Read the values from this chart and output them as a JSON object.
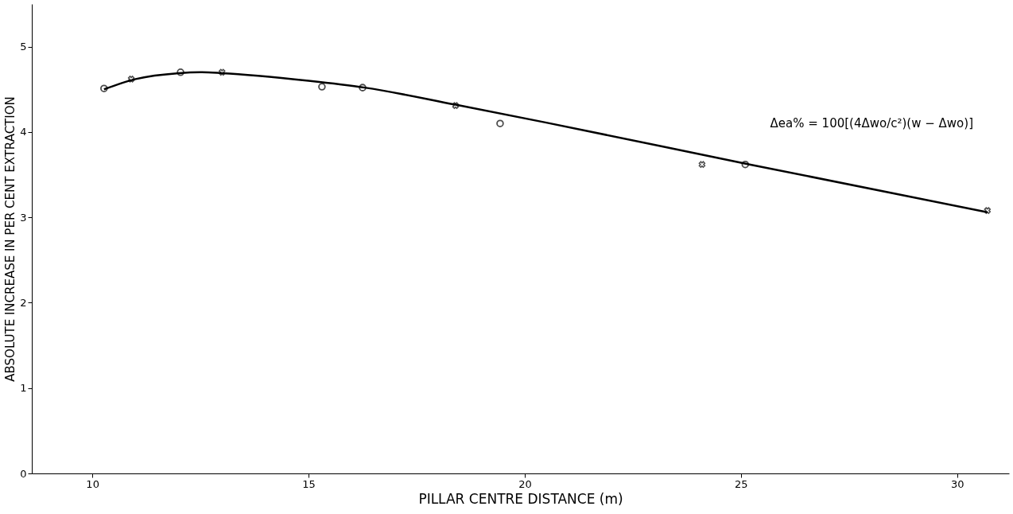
{
  "chart_data": {
    "type": "scatter",
    "xlabel": "PILLAR CENTRE DISTANCE (m)",
    "ylabel": "ABSOLUTE INCREASE IN PER CENT EXTRACTION",
    "xlim": [
      8.6,
      31.2
    ],
    "xticks": [
      10,
      15,
      20,
      25,
      30
    ],
    "ylim": [
      0,
      5.5
    ],
    "yticks": [
      0,
      1,
      2,
      3,
      4,
      5
    ],
    "grid": false,
    "series": [
      {
        "marker": "circle",
        "color": "#000000",
        "x": [
          10.27,
          12.04,
          15.31,
          16.25,
          19.43,
          25.1
        ],
        "values": [
          4.51,
          4.7,
          4.53,
          4.52,
          4.1,
          3.62
        ]
      },
      {
        "marker": "cross",
        "color": "#000000",
        "x": [
          10.9,
          13.0,
          18.4,
          24.1,
          30.7
        ],
        "values": [
          4.62,
          4.7,
          4.31,
          3.62,
          3.08
        ]
      },
      {
        "type": "line",
        "marker": "none",
        "line_style": "solid",
        "color": "#000000",
        "x": [
          10.27,
          11.0,
          12.0,
          12.5,
          13.0,
          15.0,
          16.3,
          18.4,
          20.5,
          25.2,
          30.7
        ],
        "values": [
          4.5,
          4.62,
          4.69,
          4.7,
          4.69,
          4.6,
          4.52,
          4.32,
          4.11,
          3.62,
          3.06
        ]
      }
    ],
    "annotations": [
      "Δea% = 100[(4Δwo/c²)(w − Δwo)]"
    ]
  }
}
